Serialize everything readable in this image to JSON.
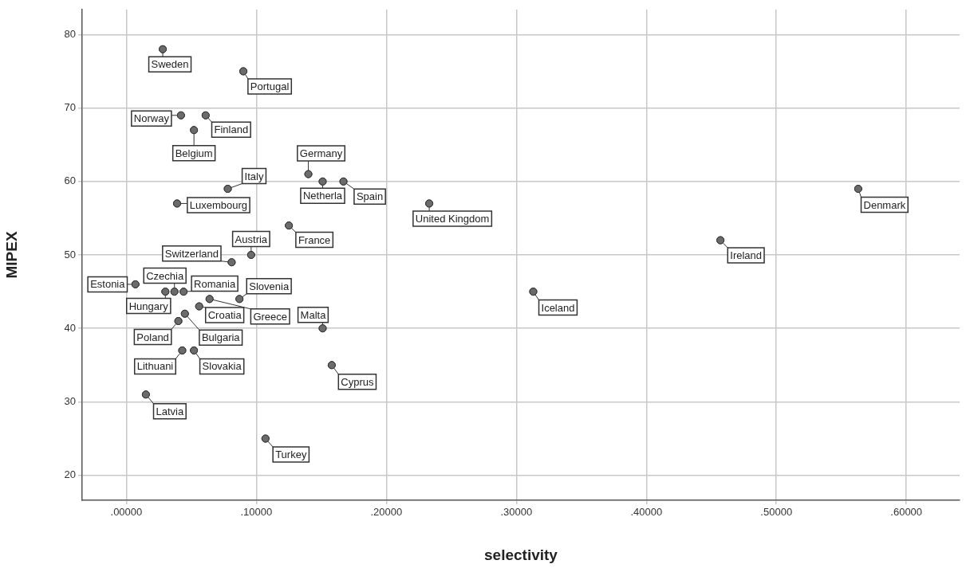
{
  "chart_data": {
    "type": "scatter",
    "xlabel": "selectivity",
    "ylabel": "MIPEX",
    "xlim": [
      -0.034,
      0.641
    ],
    "ylim": [
      16.6,
      83.4
    ],
    "xticks": [
      {
        "value": 0,
        "label": ".00000"
      },
      {
        "value": 0.1,
        "label": ".10000"
      },
      {
        "value": 0.2,
        "label": ".20000"
      },
      {
        "value": 0.3,
        "label": ".30000"
      },
      {
        "value": 0.4,
        "label": ".40000"
      },
      {
        "value": 0.5,
        "label": ".50000"
      },
      {
        "value": 0.6,
        "label": ".60000"
      }
    ],
    "yticks": [
      20,
      30,
      40,
      50,
      60,
      70,
      80
    ],
    "grid": true,
    "marker": "circle",
    "series": [
      {
        "color": "#6b6b6b",
        "x": [
          0.028,
          0.09,
          0.042,
          0.061,
          0.052,
          0.14,
          0.151,
          0.167,
          0.078,
          0.039,
          0.233,
          0.563,
          0.125,
          0.096,
          0.081,
          0.457,
          0.007,
          0.037,
          0.03,
          0.044,
          0.064,
          0.087,
          0.056,
          0.045,
          0.04,
          0.151,
          0.158,
          0.043,
          0.052,
          0.015,
          0.107,
          0.313
        ],
        "values": [
          78,
          75,
          69,
          69,
          67,
          61,
          60,
          60,
          59,
          57,
          57,
          59,
          54,
          50,
          49,
          52,
          46,
          45,
          45,
          45,
          44,
          44,
          43,
          42,
          41,
          40,
          35,
          37,
          37,
          31,
          25,
          45
        ]
      }
    ],
    "annotations": [
      {
        "text": "Sweden",
        "x": 0.028,
        "y": 78
      },
      {
        "text": "Portugal",
        "x": 0.09,
        "y": 75
      },
      {
        "text": "Norway",
        "x": 0.042,
        "y": 69
      },
      {
        "text": "Finland",
        "x": 0.061,
        "y": 69
      },
      {
        "text": "Belgium",
        "x": 0.052,
        "y": 67
      },
      {
        "text": "Germany",
        "x": 0.14,
        "y": 61
      },
      {
        "text": "Netherla",
        "x": 0.151,
        "y": 60
      },
      {
        "text": "Spain",
        "x": 0.167,
        "y": 60
      },
      {
        "text": "Italy",
        "x": 0.078,
        "y": 59
      },
      {
        "text": "Luxembourg",
        "x": 0.039,
        "y": 57
      },
      {
        "text": "United Kingdom",
        "x": 0.233,
        "y": 57
      },
      {
        "text": "Denmark",
        "x": 0.563,
        "y": 59
      },
      {
        "text": "France",
        "x": 0.125,
        "y": 54
      },
      {
        "text": "Austria",
        "x": 0.096,
        "y": 50
      },
      {
        "text": "Switzerland",
        "x": 0.081,
        "y": 49
      },
      {
        "text": "Ireland",
        "x": 0.457,
        "y": 52
      },
      {
        "text": "Estonia",
        "x": 0.007,
        "y": 46
      },
      {
        "text": "Czechia",
        "x": 0.037,
        "y": 45
      },
      {
        "text": "Hungary",
        "x": 0.03,
        "y": 45
      },
      {
        "text": "Romania",
        "x": 0.044,
        "y": 45
      },
      {
        "text": "Greece",
        "x": 0.064,
        "y": 44
      },
      {
        "text": "Slovenia",
        "x": 0.087,
        "y": 44
      },
      {
        "text": "Croatia",
        "x": 0.056,
        "y": 43
      },
      {
        "text": "Bulgaria",
        "x": 0.045,
        "y": 42
      },
      {
        "text": "Poland",
        "x": 0.04,
        "y": 41
      },
      {
        "text": "Malta",
        "x": 0.151,
        "y": 40
      },
      {
        "text": "Cyprus",
        "x": 0.158,
        "y": 35
      },
      {
        "text": "Lithuani",
        "x": 0.043,
        "y": 37
      },
      {
        "text": "Slovakia",
        "x": 0.052,
        "y": 37
      },
      {
        "text": "Latvia",
        "x": 0.015,
        "y": 31
      },
      {
        "text": "Turkey",
        "x": 0.107,
        "y": 25
      },
      {
        "text": "Iceland",
        "x": 0.313,
        "y": 45
      }
    ]
  }
}
